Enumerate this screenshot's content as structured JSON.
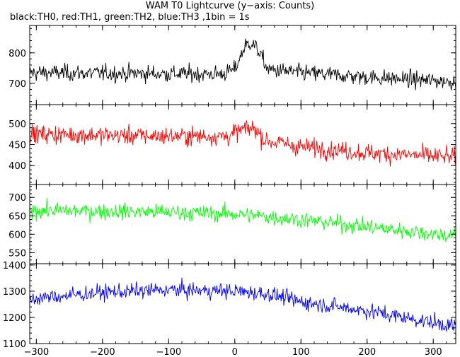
{
  "title": "WAM T0 Lightcurve (y−axis: Counts)",
  "subtitle": "black:TH0, red:TH1, green:TH2, blue:TH3 ,1bin = 1s",
  "chart_data": {
    "type": "line",
    "x_ticks": [
      -300,
      -200,
      -100,
      0,
      100,
      200,
      300
    ],
    "x_tick_labels": [
      "−300",
      "−200",
      "−100",
      "0",
      "100",
      "200",
      "300"
    ],
    "xlim": [
      -310,
      334
    ],
    "grid": false,
    "panels": [
      {
        "color": "#000000",
        "ylim": [
          630,
          890
        ],
        "y_ticks": [
          700,
          800
        ],
        "y_tick_labels": [
          "700",
          "800"
        ],
        "trend": [
          [
            -310,
            735
          ],
          [
            -20,
            730
          ],
          [
            0,
            745
          ],
          [
            15,
            820
          ],
          [
            25,
            835
          ],
          [
            35,
            810
          ],
          [
            50,
            745
          ],
          [
            100,
            735
          ],
          [
            200,
            720
          ],
          [
            334,
            705
          ]
        ],
        "noise": 35
      },
      {
        "color": "#ff0000",
        "ylim": [
          355,
          545
        ],
        "y_ticks": [
          400,
          450,
          500
        ],
        "y_tick_labels": [
          "400",
          "450",
          "500"
        ],
        "trend": [
          [
            -310,
            475
          ],
          [
            -100,
            470
          ],
          [
            -10,
            470
          ],
          [
            10,
            485
          ],
          [
            30,
            490
          ],
          [
            45,
            460
          ],
          [
            100,
            445
          ],
          [
            200,
            430
          ],
          [
            334,
            420
          ]
        ],
        "noise": 28
      },
      {
        "color": "#00ff00",
        "ylim": [
          520,
          735
        ],
        "y_ticks": [
          550,
          600,
          650,
          700
        ],
        "y_tick_labels": [
          "550",
          "600",
          "650",
          "700"
        ],
        "trend": [
          [
            -310,
            665
          ],
          [
            -100,
            660
          ],
          [
            0,
            655
          ],
          [
            100,
            640
          ],
          [
            200,
            620
          ],
          [
            334,
            595
          ]
        ],
        "noise": 28
      },
      {
        "color": "#0000ff",
        "ylim": [
          1100,
          1405
        ],
        "y_ticks": [
          1100,
          1200,
          1300,
          1400
        ],
        "y_tick_labels": [
          "1100",
          "1200",
          "1300",
          "1400"
        ],
        "trend": [
          [
            -310,
            1270
          ],
          [
            -200,
            1295
          ],
          [
            -100,
            1305
          ],
          [
            0,
            1300
          ],
          [
            50,
            1290
          ],
          [
            100,
            1260
          ],
          [
            200,
            1225
          ],
          [
            334,
            1165
          ]
        ],
        "noise": 38
      }
    ]
  }
}
